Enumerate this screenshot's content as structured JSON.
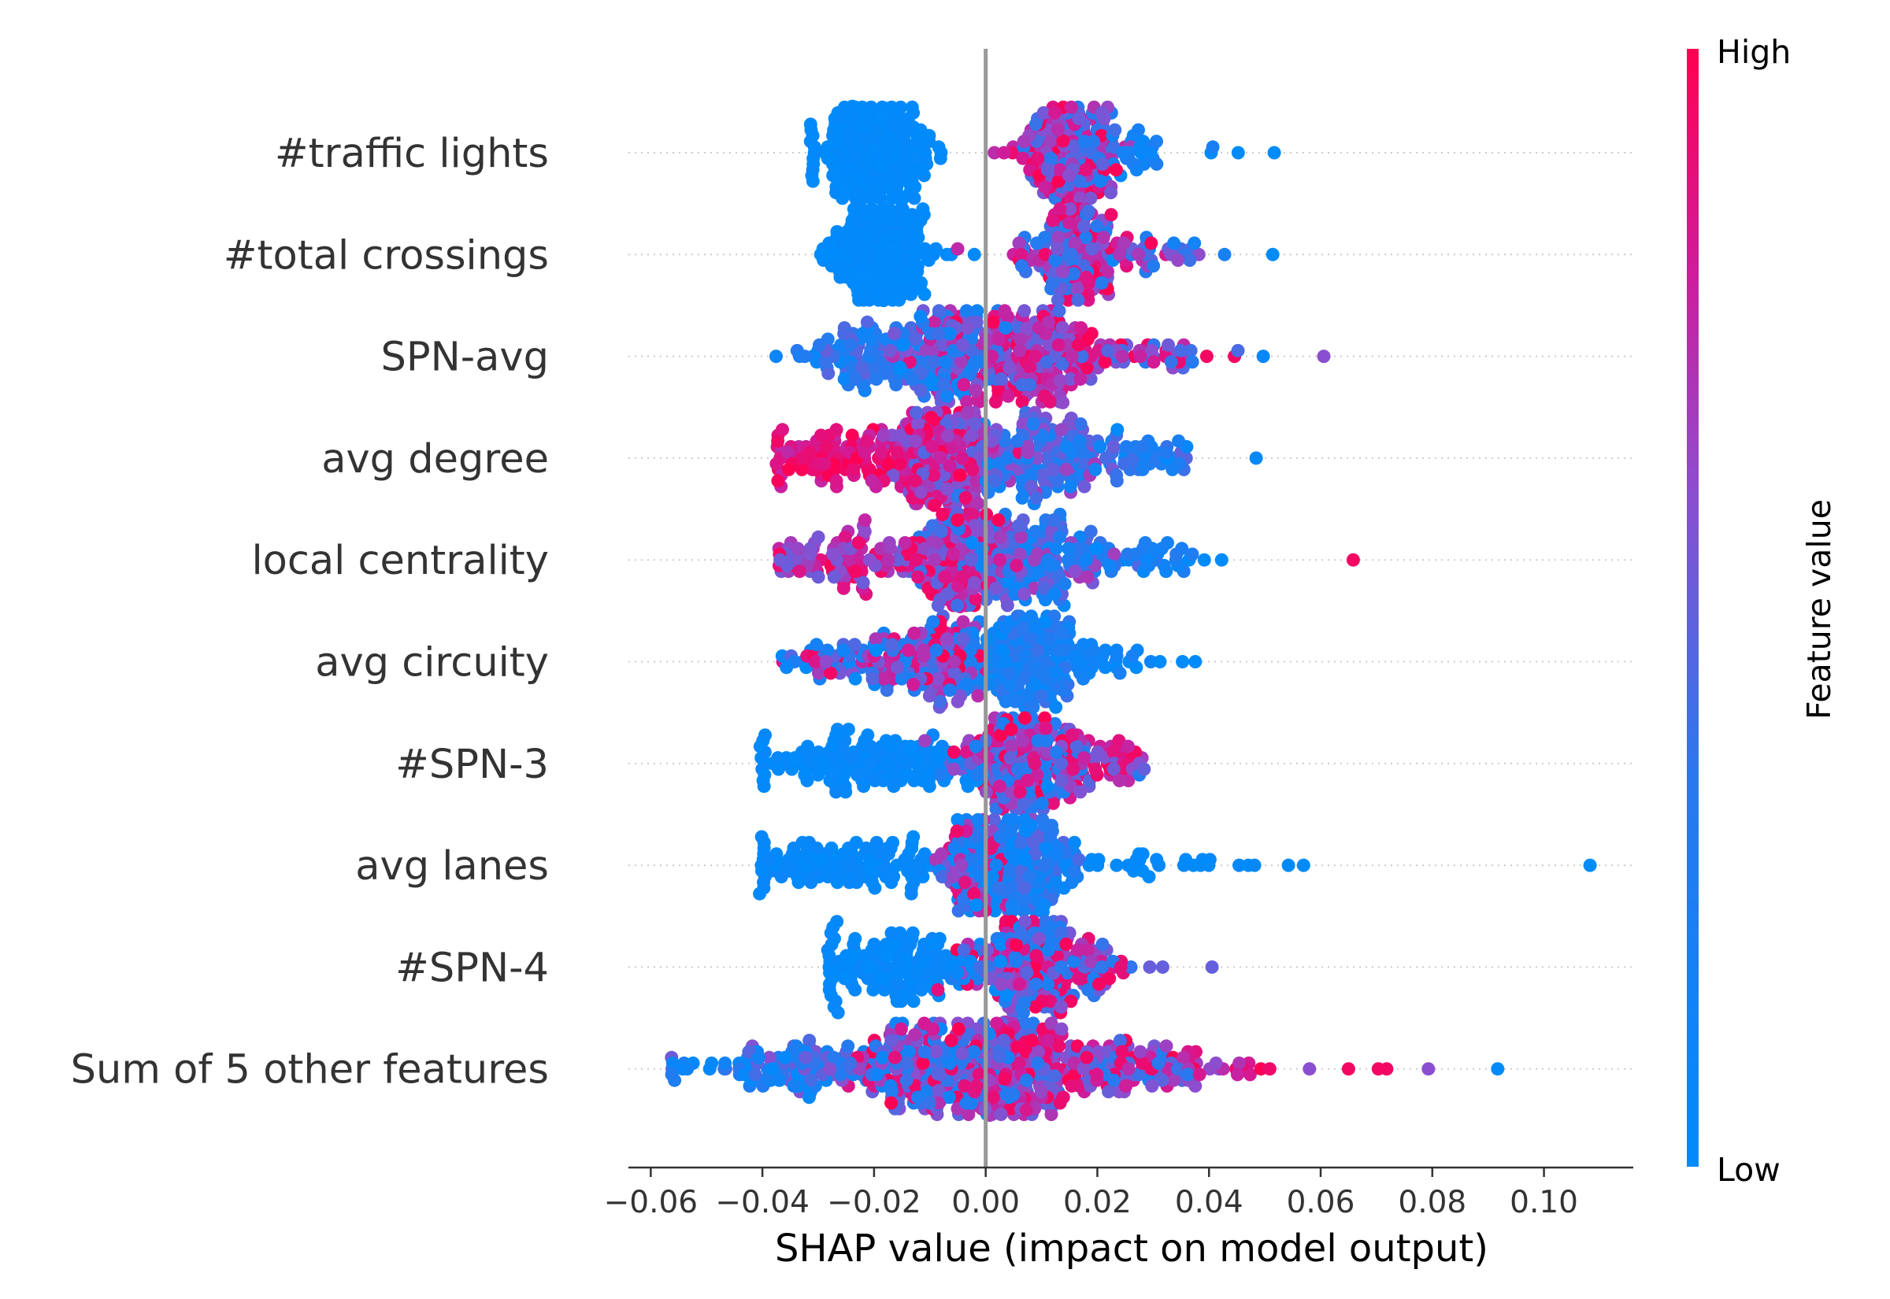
{
  "chart_data": {
    "type": "scatter",
    "subtype": "shap-beeswarm",
    "title": "",
    "xlabel": "SHAP value (impact on model output)",
    "ylabel": "",
    "xlim": [
      -0.064,
      0.116
    ],
    "xticks": [
      -0.06,
      -0.04,
      -0.02,
      0.0,
      0.02,
      0.04,
      0.06,
      0.08,
      0.1
    ],
    "xtick_labels": [
      "−0.06",
      "−0.04",
      "−0.02",
      "0.00",
      "0.02",
      "0.04",
      "0.06",
      "0.08",
      "0.10"
    ],
    "zero_line": 0.0,
    "grid": false,
    "colorbar": {
      "title": "Feature value",
      "high_label": "High",
      "low_label": "Low",
      "low_color": "#008bfb",
      "high_color": "#ff0051"
    },
    "features": [
      {
        "name": "#traffic lights",
        "range": [
          -0.031,
          0.052
        ],
        "clusters": [
          {
            "center": -0.02,
            "width": 0.012,
            "count": 260,
            "color_low": 0.0,
            "color_high": 0.05
          },
          {
            "center": 0.015,
            "width": 0.012,
            "count": 170,
            "color_low": 0.25,
            "color_high": 1.0
          },
          {
            "center": 0.028,
            "width": 0.012,
            "count": 25,
            "color_low": 0.0,
            "color_high": 0.3
          }
        ],
        "outliers": [
          {
            "x": 0.04,
            "v": 0.0
          },
          {
            "x": 0.045,
            "v": 0.0
          },
          {
            "x": 0.052,
            "v": 0.0
          }
        ]
      },
      {
        "name": "#total crossings",
        "range": [
          -0.03,
          0.051
        ],
        "clusters": [
          {
            "center": -0.019,
            "width": 0.012,
            "count": 250,
            "color_low": 0.0,
            "color_high": 0.05
          },
          {
            "center": 0.016,
            "width": 0.012,
            "count": 170,
            "color_low": 0.25,
            "color_high": 1.0
          },
          {
            "center": 0.03,
            "width": 0.01,
            "count": 25,
            "color_low": 0.1,
            "color_high": 0.9
          }
        ],
        "outliers": [
          {
            "x": 0.037,
            "v": 0.4
          },
          {
            "x": 0.051,
            "v": 0.0
          }
        ]
      },
      {
        "name": "SPN-avg",
        "range": [
          -0.04,
          0.061
        ],
        "clusters": [
          {
            "center": -0.02,
            "width": 0.019,
            "count": 110,
            "color_low": 0.0,
            "color_high": 0.5
          },
          {
            "center": -0.007,
            "width": 0.012,
            "count": 120,
            "color_low": 0.05,
            "color_high": 0.9
          },
          {
            "center": 0.01,
            "width": 0.013,
            "count": 190,
            "color_low": 0.4,
            "color_high": 1.0
          },
          {
            "center": 0.03,
            "width": 0.012,
            "count": 35,
            "color_low": 0.3,
            "color_high": 1.0
          }
        ],
        "outliers": [
          {
            "x": 0.04,
            "v": 0.95
          },
          {
            "x": 0.045,
            "v": 0.95
          },
          {
            "x": 0.05,
            "v": 0.05
          },
          {
            "x": 0.061,
            "v": 0.6
          }
        ]
      },
      {
        "name": "avg degree",
        "range": [
          -0.037,
          0.048
        ],
        "clusters": [
          {
            "center": -0.025,
            "width": 0.02,
            "count": 110,
            "color_low": 0.75,
            "color_high": 1.0
          },
          {
            "center": -0.008,
            "width": 0.012,
            "count": 190,
            "color_low": 0.45,
            "color_high": 1.0
          },
          {
            "center": 0.01,
            "width": 0.016,
            "count": 150,
            "color_low": 0.1,
            "color_high": 0.7
          },
          {
            "center": 0.03,
            "width": 0.012,
            "count": 35,
            "color_low": 0.0,
            "color_high": 0.5
          }
        ],
        "outliers": [
          {
            "x": 0.048,
            "v": 0.05
          }
        ]
      },
      {
        "name": "local centrality",
        "range": [
          -0.037,
          0.066
        ],
        "clusters": [
          {
            "center": -0.025,
            "width": 0.018,
            "count": 90,
            "color_low": 0.5,
            "color_high": 1.0
          },
          {
            "center": -0.006,
            "width": 0.012,
            "count": 170,
            "color_low": 0.3,
            "color_high": 1.0
          },
          {
            "center": 0.01,
            "width": 0.016,
            "count": 150,
            "color_low": 0.0,
            "color_high": 0.7
          },
          {
            "center": 0.028,
            "width": 0.01,
            "count": 25,
            "color_low": 0.0,
            "color_high": 0.3
          }
        ],
        "outliers": [
          {
            "x": 0.036,
            "v": 0.0
          },
          {
            "x": 0.039,
            "v": 0.0
          },
          {
            "x": 0.042,
            "v": 0.0
          },
          {
            "x": 0.066,
            "v": 0.95
          }
        ]
      },
      {
        "name": "avg circuity",
        "range": [
          -0.036,
          0.038
        ],
        "clusters": [
          {
            "center": -0.022,
            "width": 0.02,
            "count": 90,
            "color_low": 0.0,
            "color_high": 1.0
          },
          {
            "center": -0.008,
            "width": 0.01,
            "count": 80,
            "color_low": 0.2,
            "color_high": 1.0
          },
          {
            "center": 0.007,
            "width": 0.012,
            "count": 170,
            "color_low": 0.0,
            "color_high": 0.4
          },
          {
            "center": 0.022,
            "width": 0.01,
            "count": 30,
            "color_low": 0.0,
            "color_high": 0.2
          }
        ],
        "outliers": [
          {
            "x": 0.035,
            "v": 0.0
          },
          {
            "x": 0.038,
            "v": 0.0
          },
          {
            "x": 0.006,
            "v": 1.0
          }
        ]
      },
      {
        "name": "#SPN-3",
        "range": [
          -0.04,
          0.028
        ],
        "clusters": [
          {
            "center": -0.022,
            "width": 0.028,
            "count": 150,
            "color_low": 0.0,
            "color_high": 0.1
          },
          {
            "center": 0.006,
            "width": 0.014,
            "count": 190,
            "color_low": 0.2,
            "color_high": 1.0
          },
          {
            "center": 0.02,
            "width": 0.012,
            "count": 50,
            "color_low": 0.5,
            "color_high": 1.0
          }
        ],
        "outliers": []
      },
      {
        "name": "avg lanes",
        "range": [
          -0.04,
          0.108
        ],
        "clusters": [
          {
            "center": -0.024,
            "width": 0.03,
            "count": 140,
            "color_low": 0.0,
            "color_high": 0.1
          },
          {
            "center": -0.002,
            "width": 0.01,
            "count": 80,
            "color_low": 0.0,
            "color_high": 1.0
          },
          {
            "center": 0.007,
            "width": 0.012,
            "count": 130,
            "color_low": 0.0,
            "color_high": 0.5
          },
          {
            "center": 0.03,
            "width": 0.024,
            "count": 30,
            "color_low": 0.0,
            "color_high": 0.05
          }
        ],
        "outliers": [
          {
            "x": 0.057,
            "v": 0.0
          },
          {
            "x": 0.108,
            "v": 0.0
          }
        ]
      },
      {
        "name": "#SPN-4",
        "range": [
          -0.028,
          0.041
        ],
        "clusters": [
          {
            "center": -0.015,
            "width": 0.02,
            "count": 150,
            "color_low": 0.0,
            "color_high": 0.1
          },
          {
            "center": 0.008,
            "width": 0.014,
            "count": 180,
            "color_low": 0.2,
            "color_high": 1.0
          },
          {
            "center": 0.02,
            "width": 0.01,
            "count": 25,
            "color_low": 0.3,
            "color_high": 1.0
          }
        ],
        "outliers": [
          {
            "x": 0.032,
            "v": 0.5
          },
          {
            "x": 0.041,
            "v": 0.5
          },
          {
            "x": -0.005,
            "v": 1.0
          }
        ]
      },
      {
        "name": "Sum of 5 other features",
        "range": [
          -0.056,
          0.092
        ],
        "clusters": [
          {
            "center": -0.035,
            "width": 0.03,
            "count": 110,
            "color_low": 0.0,
            "color_high": 0.6
          },
          {
            "center": -0.01,
            "width": 0.02,
            "count": 180,
            "color_low": 0.1,
            "color_high": 1.0
          },
          {
            "center": 0.007,
            "width": 0.014,
            "count": 230,
            "color_low": 0.3,
            "color_high": 1.0
          },
          {
            "center": 0.028,
            "width": 0.016,
            "count": 80,
            "color_low": 0.3,
            "color_high": 1.0
          },
          {
            "center": 0.045,
            "width": 0.01,
            "count": 15,
            "color_low": 0.6,
            "color_high": 1.0
          }
        ],
        "outliers": [
          {
            "x": 0.058,
            "v": 0.6
          },
          {
            "x": 0.065,
            "v": 0.95
          },
          {
            "x": 0.07,
            "v": 0.95
          },
          {
            "x": 0.072,
            "v": 0.95
          },
          {
            "x": 0.079,
            "v": 0.6
          },
          {
            "x": 0.092,
            "v": 0.0
          }
        ]
      }
    ]
  }
}
